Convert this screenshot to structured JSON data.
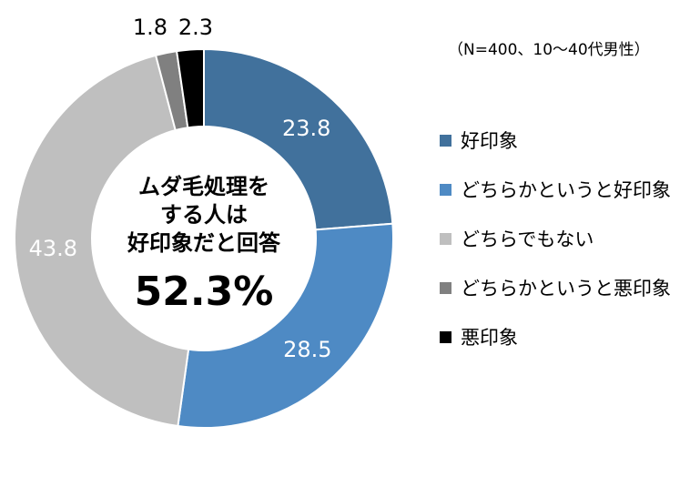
{
  "chart_data": {
    "type": "pie",
    "style": "donut",
    "note": "（N=400、10～40代男性）",
    "center": {
      "lines": [
        "ムダ毛処理を",
        "する人は",
        "好印象だと回答"
      ],
      "value": "52.3%"
    },
    "slices": [
      {
        "label": "好印象",
        "value": 23.8,
        "value_label": "23.8",
        "color": "#41719c",
        "label_color": "#ffffff"
      },
      {
        "label": "どちらかというと好印象",
        "value": 28.5,
        "value_label": "28.5",
        "color": "#4e8ac4",
        "label_color": "#ffffff"
      },
      {
        "label": "どちらでもない",
        "value": 43.8,
        "value_label": "43.8",
        "color": "#bfbfbf",
        "label_color": "#ffffff"
      },
      {
        "label": "どちらかというと悪印象",
        "value": 1.8,
        "value_label": "1.8",
        "color": "#808080",
        "label_color": "#000000"
      },
      {
        "label": "悪印象",
        "value": 2.3,
        "value_label": "2.3",
        "color": "#000000",
        "label_color": "#000000"
      }
    ]
  }
}
